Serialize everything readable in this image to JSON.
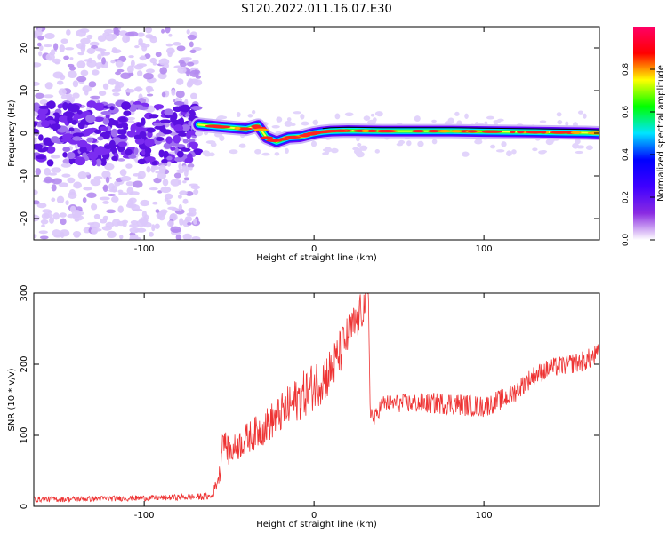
{
  "figure_title": "S120.2022.011.16.07.E30",
  "chart_data": [
    {
      "type": "heatmap",
      "title": "S120.2022.011.16.07.E30",
      "xlabel": "Height of straight line (km)",
      "ylabel": "Frequency (Hz)",
      "xlim": [
        -165,
        168
      ],
      "ylim": [
        -25,
        25
      ],
      "x_ticks": [
        -100,
        0,
        100
      ],
      "y_ticks": [
        -20,
        -10,
        0,
        10,
        20
      ],
      "grid": false,
      "colorbar": {
        "label": "Normalized spectral amplitude",
        "range": [
          0,
          1
        ],
        "ticks": [
          0.0,
          0.2,
          0.4,
          0.6,
          0.8
        ],
        "colormap": "rainbow",
        "stops": [
          "#ffffff",
          "#8a2be2",
          "#3f00ff",
          "#0000ff",
          "#00e5ff",
          "#00ff00",
          "#ffff00",
          "#ff0000",
          "#ff0066"
        ]
      },
      "signal_track": {
        "description": "narrow high-amplitude band near 0 Hz",
        "x": [
          -68,
          -55,
          -40,
          -33,
          -28,
          -22,
          -15,
          -8,
          0,
          5,
          10,
          20,
          40,
          60,
          80,
          100,
          120,
          140,
          160,
          168
        ],
        "y": [
          2,
          1.5,
          1,
          1.8,
          -1,
          -2,
          -1,
          -0.8,
          0,
          0.3,
          0.5,
          0.6,
          0.5,
          0.5,
          0.5,
          0.4,
          0.3,
          0.2,
          0.1,
          0
        ]
      },
      "noise_region_x": [
        -165,
        -68
      ]
    },
    {
      "type": "line",
      "xlabel": "Height of straight line (km)",
      "ylabel": "SNR (10 * v/v)",
      "xlim": [
        -165,
        168
      ],
      "ylim": [
        0,
        300
      ],
      "x_ticks": [
        -100,
        0,
        100
      ],
      "y_ticks": [
        0,
        100,
        200,
        300
      ],
      "grid": false,
      "series": [
        {
          "color": "#ee3333",
          "x": [
            -165,
            -150,
            -120,
            -90,
            -60,
            -55,
            -54,
            -50,
            -40,
            -30,
            -20,
            -10,
            0,
            10,
            20,
            25,
            30,
            32,
            33,
            35,
            40,
            60,
            80,
            100,
            115,
            120,
            130,
            140,
            150,
            160,
            168
          ],
          "y": [
            10,
            10,
            11,
            12,
            14,
            50,
            100,
            75,
            95,
            110,
            130,
            150,
            170,
            190,
            240,
            260,
            285,
            300,
            140,
            120,
            145,
            145,
            145,
            140,
            155,
            165,
            185,
            195,
            200,
            205,
            215
          ],
          "noise_amplitude": [
            4,
            4,
            4,
            4,
            5,
            15,
            15,
            20,
            22,
            25,
            28,
            32,
            35,
            35,
            30,
            30,
            25,
            10,
            15,
            12,
            12,
            14,
            16,
            15,
            15,
            15,
            14,
            14,
            14,
            15,
            15
          ]
        }
      ]
    }
  ]
}
